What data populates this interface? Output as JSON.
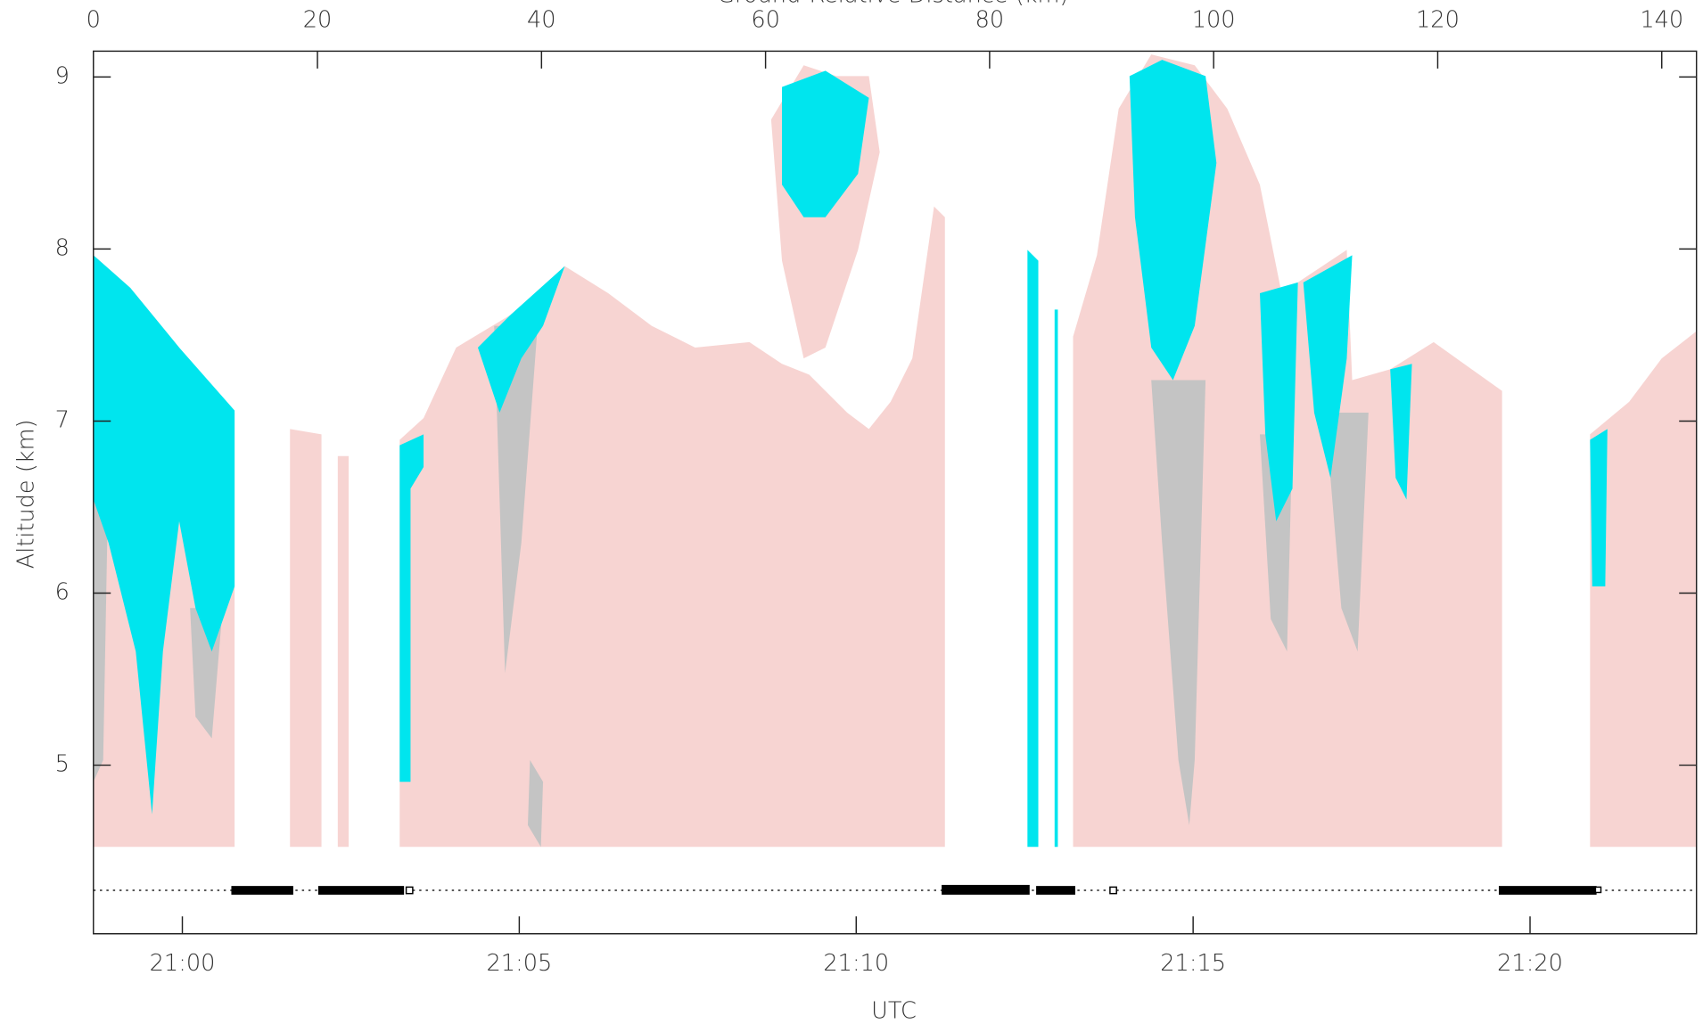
{
  "chart_data": {
    "type": "curtain",
    "x_label": "UTC",
    "y_label": "Altitude (km)",
    "x2_label": "Ground-Relative Distance (km)",
    "xlim": [
      1258.68,
      1282.47
    ],
    "xticks": [
      {
        "value": 1260,
        "label": "21:00"
      },
      {
        "value": 1265,
        "label": "21:05"
      },
      {
        "value": 1270,
        "label": "21:10"
      },
      {
        "value": 1275,
        "label": "21:15"
      },
      {
        "value": 1280,
        "label": "21:20"
      }
    ],
    "x2lim": [
      0,
      143.1
    ],
    "x2ticks": [
      0,
      20,
      40,
      60,
      80,
      100,
      120,
      140
    ],
    "ylim": [
      4.02,
      9.15
    ],
    "yticks": [
      5,
      6,
      7,
      8,
      9
    ]
  }
}
